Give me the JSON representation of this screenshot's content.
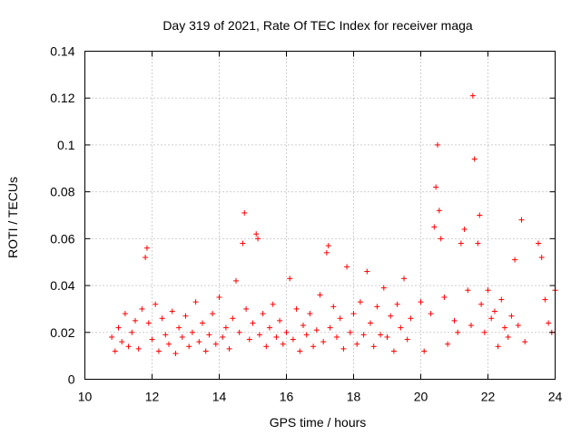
{
  "chart_data": {
    "type": "scatter",
    "title": "Day 319 of 2021, Rate Of TEC Index for receiver maga",
    "xlabel": "GPS time / hours",
    "ylabel": "ROTI / TECUs",
    "xlim": [
      10,
      24
    ],
    "ylim": [
      0,
      0.14
    ],
    "x_ticks": [
      "10",
      "12",
      "14",
      "16",
      "18",
      "20",
      "22",
      "24"
    ],
    "y_ticks": [
      "0",
      "0.02",
      "0.04",
      "0.06",
      "0.08",
      "0.1",
      "0.12",
      "0.14"
    ],
    "grid": true,
    "marker": "plus",
    "colors": {
      "points": "#ff0000",
      "grid": "#a0a0a0",
      "frame": "#000000"
    },
    "series": [
      {
        "x": [
          10.8,
          10.9,
          11.0,
          11.1,
          11.2,
          11.3,
          11.4,
          11.5,
          11.6,
          11.7,
          11.8,
          11.85,
          11.9,
          12.0,
          12.1,
          12.2,
          12.3,
          12.4,
          12.5,
          12.6,
          12.7,
          12.8,
          12.9,
          13.0,
          13.1,
          13.2,
          13.3,
          13.4,
          13.5,
          13.6,
          13.7,
          13.8,
          13.9,
          14.0,
          14.1,
          14.2,
          14.3,
          14.4,
          14.5,
          14.6,
          14.7,
          14.75,
          14.8,
          14.9,
          15.0,
          15.1,
          15.15,
          15.2,
          15.3,
          15.4,
          15.5,
          15.6,
          15.7,
          15.8,
          15.9,
          16.0,
          16.1,
          16.2,
          16.3,
          16.4,
          16.5,
          16.6,
          16.7,
          16.8,
          16.9,
          17.0,
          17.1,
          17.2,
          17.25,
          17.3,
          17.4,
          17.5,
          17.6,
          17.7,
          17.8,
          17.9,
          18.0,
          18.1,
          18.2,
          18.3,
          18.4,
          18.5,
          18.6,
          18.7,
          18.8,
          18.9,
          19.0,
          19.1,
          19.2,
          19.3,
          19.4,
          19.5,
          19.6,
          19.7,
          20.0,
          20.1,
          20.3,
          20.4,
          20.45,
          20.5,
          20.55,
          20.6,
          20.7,
          20.8,
          21.0,
          21.1,
          21.2,
          21.3,
          21.4,
          21.5,
          21.55,
          21.6,
          21.7,
          21.75,
          21.8,
          21.9,
          22.0,
          22.1,
          22.2,
          22.3,
          22.4,
          22.5,
          22.6,
          22.7,
          22.8,
          22.9,
          23.0,
          23.1,
          23.5,
          23.6,
          23.7,
          23.8,
          23.9,
          24.0
        ],
        "y": [
          0.018,
          0.012,
          0.022,
          0.016,
          0.028,
          0.014,
          0.02,
          0.025,
          0.013,
          0.03,
          0.052,
          0.056,
          0.024,
          0.017,
          0.032,
          0.012,
          0.026,
          0.019,
          0.015,
          0.029,
          0.011,
          0.022,
          0.018,
          0.027,
          0.014,
          0.02,
          0.033,
          0.016,
          0.024,
          0.012,
          0.019,
          0.028,
          0.015,
          0.035,
          0.018,
          0.022,
          0.013,
          0.026,
          0.042,
          0.02,
          0.058,
          0.071,
          0.03,
          0.017,
          0.024,
          0.062,
          0.06,
          0.019,
          0.028,
          0.014,
          0.022,
          0.032,
          0.018,
          0.025,
          0.015,
          0.02,
          0.043,
          0.017,
          0.03,
          0.012,
          0.023,
          0.019,
          0.028,
          0.014,
          0.021,
          0.036,
          0.016,
          0.054,
          0.057,
          0.022,
          0.031,
          0.018,
          0.026,
          0.013,
          0.048,
          0.02,
          0.028,
          0.015,
          0.033,
          0.019,
          0.046,
          0.024,
          0.014,
          0.031,
          0.019,
          0.039,
          0.018,
          0.027,
          0.012,
          0.032,
          0.022,
          0.043,
          0.017,
          0.026,
          0.033,
          0.012,
          0.028,
          0.065,
          0.082,
          0.1,
          0.072,
          0.06,
          0.035,
          0.015,
          0.025,
          0.02,
          0.058,
          0.064,
          0.038,
          0.023,
          0.121,
          0.094,
          0.058,
          0.07,
          0.032,
          0.02,
          0.038,
          0.026,
          0.029,
          0.014,
          0.034,
          0.022,
          0.018,
          0.027,
          0.051,
          0.023,
          0.068,
          0.016,
          0.058,
          0.052,
          0.034,
          0.024,
          0.02,
          0.038
        ]
      }
    ]
  }
}
